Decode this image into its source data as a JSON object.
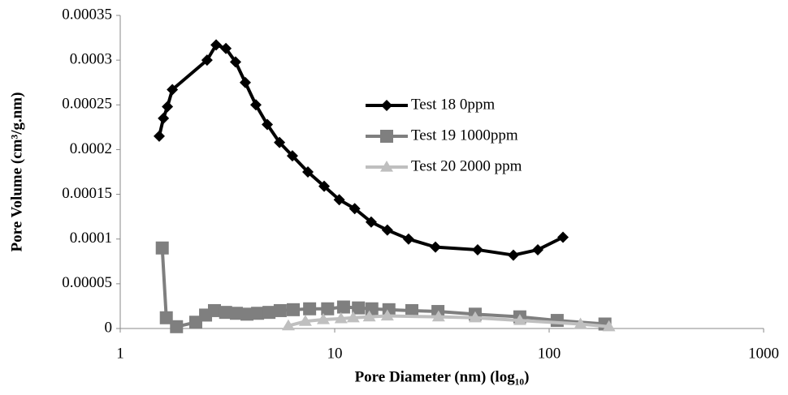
{
  "chart_data": {
    "type": "line",
    "x_scale": "log",
    "x_label": "Pore Diameter (nm) (log₁₀)",
    "y_label": "Pore Volume (cm³/g.nm)",
    "xlim": [
      1,
      1000
    ],
    "xticks": [
      1,
      10,
      100,
      1000
    ],
    "ylim": [
      0,
      0.00035
    ],
    "yticks": [
      0,
      5e-05,
      0.0001,
      0.00015,
      0.0002,
      0.00025,
      0.0003,
      0.00035
    ],
    "grid": false,
    "legend": "upper center",
    "series": [
      {
        "name": "Test 18 0ppm",
        "color": "#000000",
        "marker": "diamond",
        "x": [
          1.52,
          1.59,
          1.66,
          1.75,
          2.54,
          2.8,
          3.11,
          3.45,
          3.83,
          4.29,
          4.85,
          5.53,
          6.35,
          7.5,
          8.93,
          10.5,
          12.4,
          14.8,
          17.6,
          22.1,
          29.5,
          46.4,
          68.1,
          88.5,
          116
        ],
        "values": [
          0.000215,
          0.000235,
          0.000248,
          0.000267,
          0.0003,
          0.000317,
          0.000313,
          0.000298,
          0.000275,
          0.00025,
          0.000228,
          0.000208,
          0.000193,
          0.000175,
          0.000159,
          0.000144,
          0.000134,
          0.000119,
          0.00011,
          0.0001,
          9.1e-05,
          8.8e-05,
          8.2e-05,
          8.8e-05,
          0.000102
        ]
      },
      {
        "name": "Test 19 1000ppm",
        "color": "#7f7f7f",
        "marker": "square",
        "x": [
          1.57,
          1.64,
          1.83,
          2.25,
          2.5,
          2.75,
          3.1,
          3.48,
          3.9,
          4.37,
          4.94,
          5.57,
          6.41,
          7.64,
          9.27,
          11,
          12.9,
          14.9,
          17.9,
          22.9,
          30.3,
          45.2,
          73,
          109,
          182
        ],
        "values": [
          9e-05,
          1.2e-05,
          2e-06,
          7e-06,
          1.5e-05,
          2e-05,
          1.8e-05,
          1.7e-05,
          1.6e-05,
          1.7e-05,
          1.8e-05,
          2e-05,
          2.1e-05,
          2.2e-05,
          2.2e-05,
          2.4e-05,
          2.3e-05,
          2.2e-05,
          2.1e-05,
          2e-05,
          1.9e-05,
          1.6e-05,
          1.3e-05,
          9e-06,
          5e-06
        ]
      },
      {
        "name": "Test 20 2000 ppm",
        "color": "#bfbfbf",
        "marker": "triangle",
        "x": [
          6.08,
          7.3,
          8.85,
          10.7,
          12.2,
          14.5,
          17.6,
          30.5,
          45.2,
          73,
          140,
          190
        ],
        "values": [
          3e-06,
          8e-06,
          1e-05,
          1.1e-05,
          1.2e-05,
          1.3e-05,
          1.4e-05,
          1.3e-05,
          1.2e-05,
          9e-06,
          5e-06,
          2e-06
        ]
      }
    ]
  }
}
